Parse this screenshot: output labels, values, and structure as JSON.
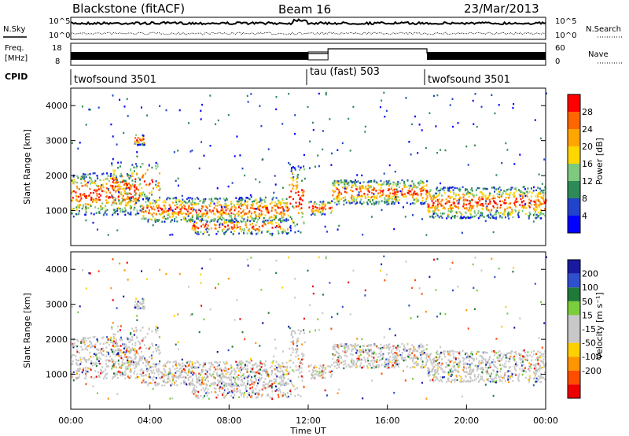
{
  "header": {
    "radar": "Blackstone (fitACF)",
    "beam": "Beam 16",
    "date": "23/Mar/2013"
  },
  "strip": {
    "nsky_label": "N.Sky",
    "nsearch_label": "N.Search",
    "freq_label_1": "Freq.",
    "freq_label_2": "[MHz]",
    "nave_label": "Nave",
    "cpid_label": "CPID",
    "left_ticks_top": [
      "10^5",
      "10^0"
    ],
    "right_ticks_top": [
      "10^5",
      "10^0"
    ],
    "left_ticks_freq": [
      "18",
      "8"
    ],
    "right_ticks_nave": [
      "60",
      "0"
    ]
  },
  "cpid": [
    {
      "name": "twofsound 3501",
      "start": 0,
      "end": 12
    },
    {
      "name": "tau (fast) 503",
      "start": 12,
      "end": 18
    },
    {
      "name": "twofsound 3501",
      "start": 18,
      "end": 24
    }
  ],
  "colors": {
    "power": [
      "#0000ff",
      "#2244cc",
      "#2e8b57",
      "#7fc97f",
      "#ffd700",
      "#ffa500",
      "#ff6600",
      "#ff0000"
    ],
    "velocity": [
      "#1a1aa0",
      "#2f4fcf",
      "#1f7a3a",
      "#7ccd3c",
      "#c8c8c8",
      "#c8c8c8",
      "#ffd000",
      "#ff9500",
      "#ff4d00",
      "#ee0000"
    ]
  },
  "chart_data": [
    {
      "type": "heatmap",
      "title": "Power",
      "ylabel": "Slant Range [km]",
      "xlabel": "",
      "xlim": [
        "00:00",
        "24:00"
      ],
      "ylim": [
        0,
        4500
      ],
      "yticks": [
        "1000",
        "2000",
        "3000",
        "4000"
      ],
      "colorbar": {
        "label": "Power [dB]",
        "ticks": [
          "4",
          "8",
          "12",
          "16",
          "20",
          "24",
          "28"
        ]
      }
    },
    {
      "type": "heatmap",
      "title": "Velocity",
      "ylabel": "Slant Range [km]",
      "xlabel": "Time UT",
      "xlim": [
        "00:00",
        "24:00"
      ],
      "ylim": [
        0,
        4500
      ],
      "xticks": [
        "00:00",
        "04:00",
        "08:00",
        "12:00",
        "16:00",
        "20:00",
        "00:00"
      ],
      "yticks": [
        "1000",
        "2000",
        "3000",
        "4000"
      ],
      "colorbar": {
        "label": "Velocity [m s⁻¹]",
        "ticks": [
          "200",
          "100",
          "50",
          "15",
          "-15",
          "-50",
          "-100",
          "-200"
        ]
      }
    }
  ]
}
